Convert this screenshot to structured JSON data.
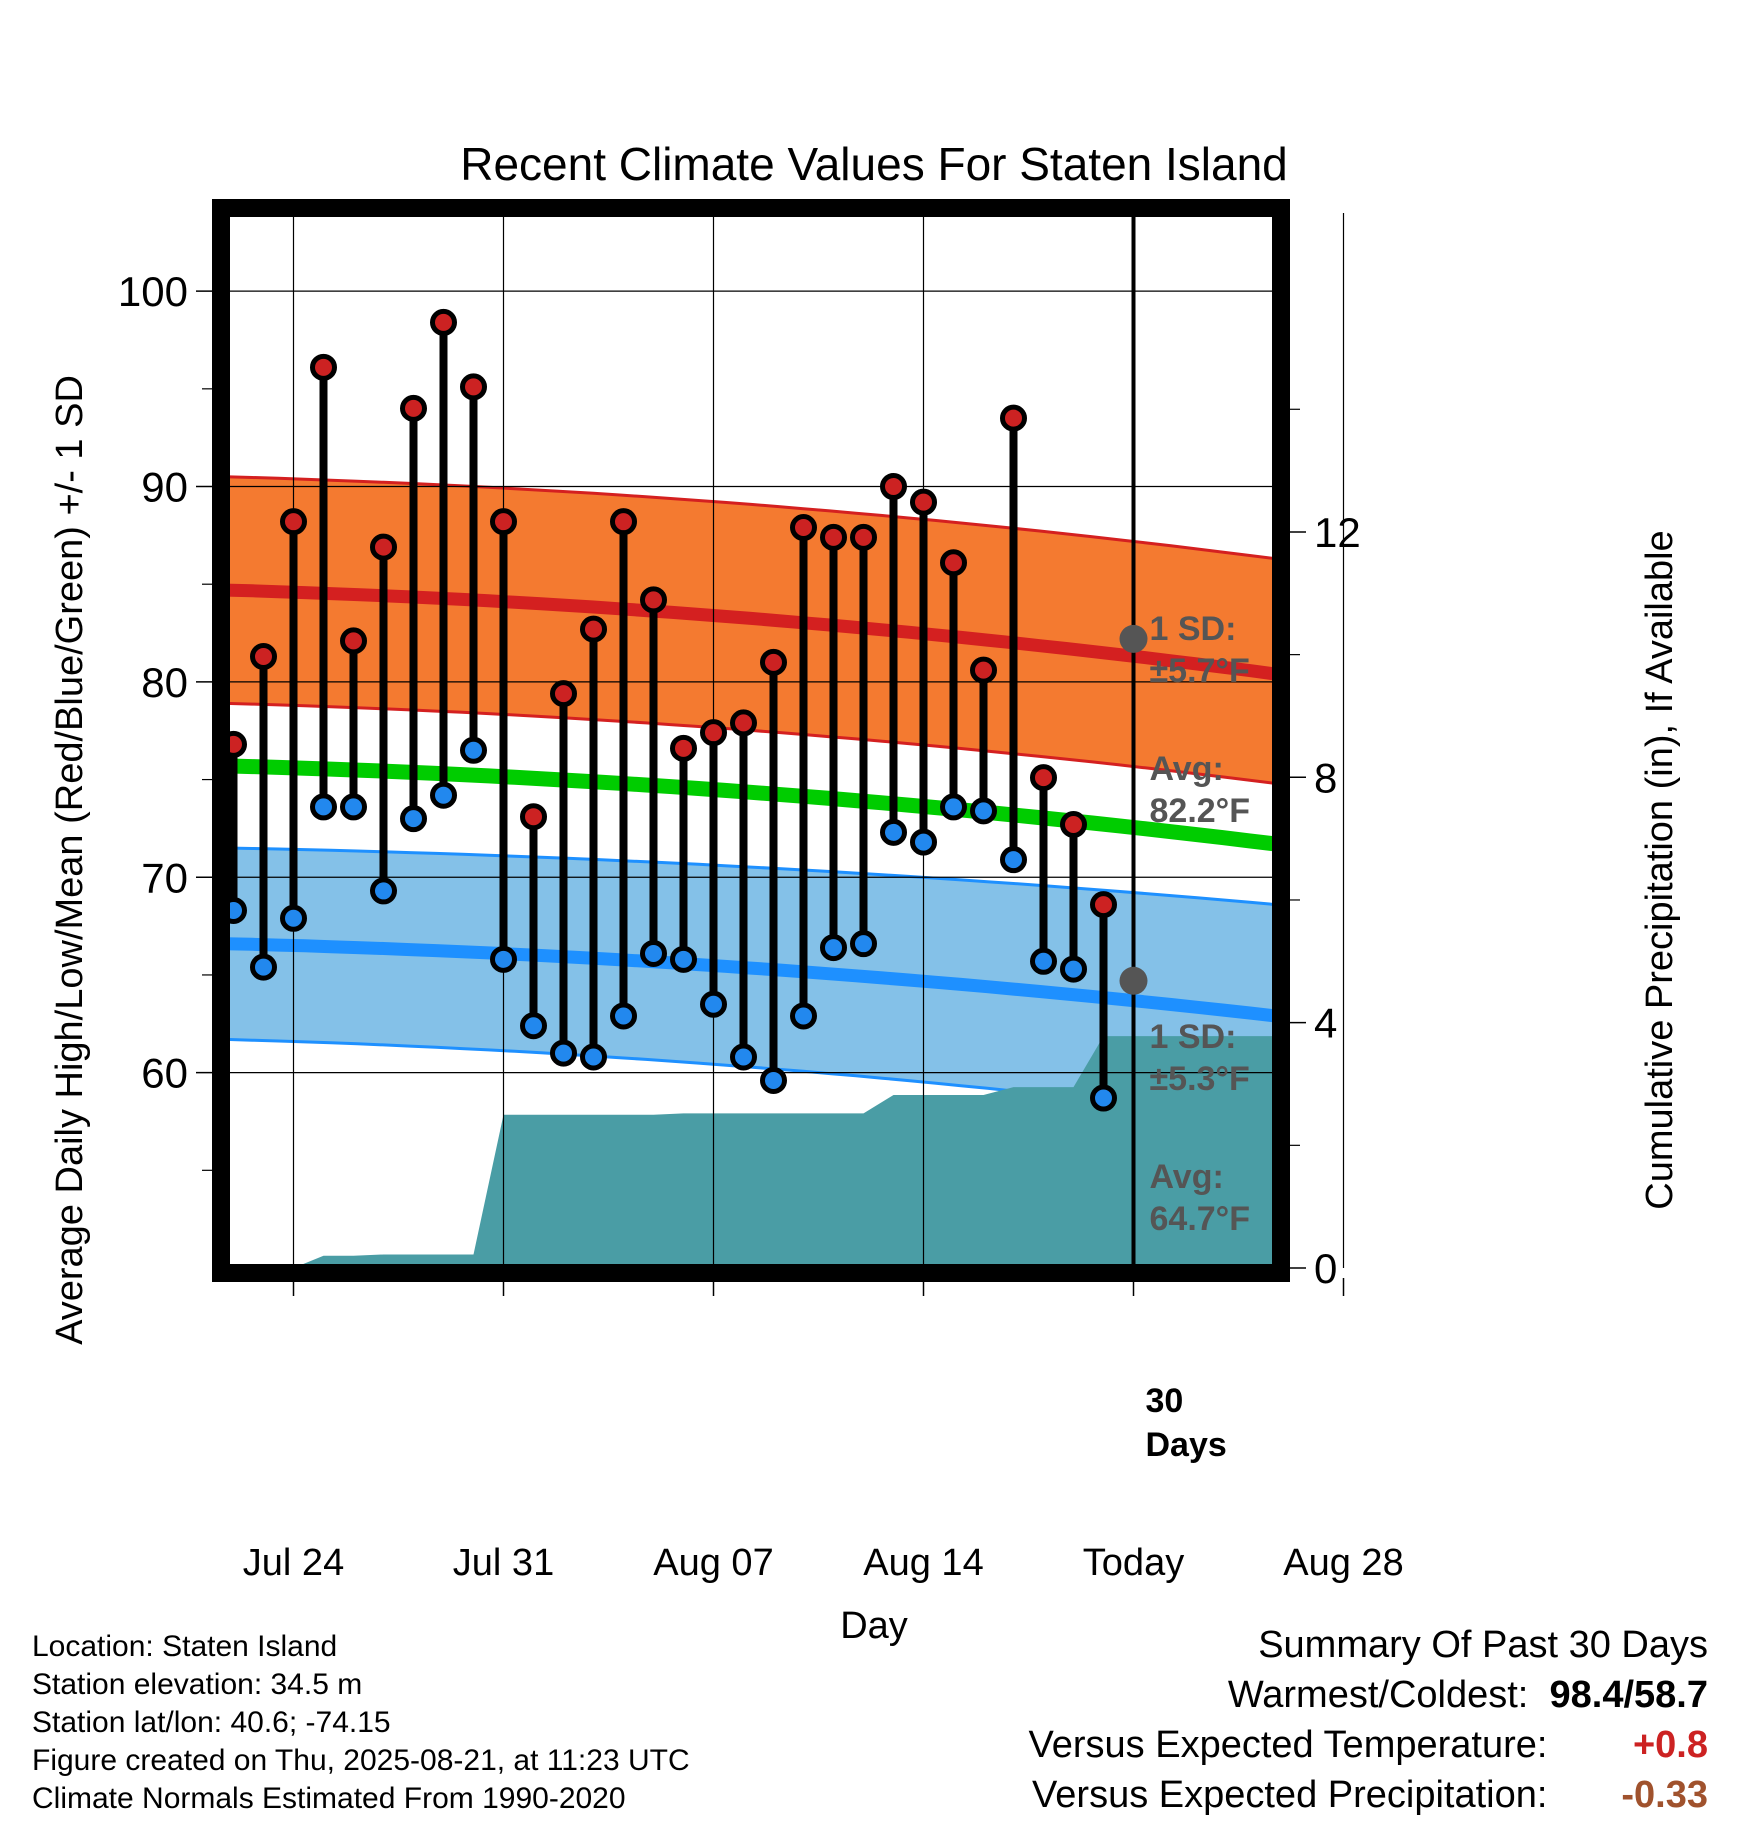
{
  "chart_data": {
    "type": "line",
    "title": "Recent Climate Values For Staten Island",
    "xlabel": "Day",
    "ylabel": "Average Daily High/Low/Mean (Red/Blue/Green) +/- 1 SD",
    "y2label": "Cumulative Precipitation (in), If Available",
    "ylim": [
      50,
      104
    ],
    "y_ticks": [
      "100",
      "90",
      "80",
      "70",
      "60"
    ],
    "y2lim": [
      0,
      17.2
    ],
    "y2_ticks": [
      "12",
      "8",
      "4",
      "0"
    ],
    "x_ticks": [
      "Jul 24",
      "Jul 31",
      "Aug 07",
      "Aug 14",
      "Today",
      "Aug 28"
    ],
    "grid": true,
    "days": [
      "Jul 22",
      "Jul 23",
      "Jul 24",
      "Jul 25",
      "Jul 26",
      "Jul 27",
      "Jul 28",
      "Jul 29",
      "Jul 30",
      "Jul 31",
      "Aug 01",
      "Aug 02",
      "Aug 03",
      "Aug 04",
      "Aug 05",
      "Aug 06",
      "Aug 07",
      "Aug 08",
      "Aug 09",
      "Aug 10",
      "Aug 11",
      "Aug 12",
      "Aug 13",
      "Aug 14",
      "Aug 15",
      "Aug 16",
      "Aug 17",
      "Aug 18",
      "Aug 19",
      "Aug 20"
    ],
    "series": [
      {
        "name": "High",
        "color": "#cc2222",
        "values": [
          76.8,
          81.3,
          88.2,
          96.1,
          82.1,
          86.9,
          94.0,
          98.4,
          95.1,
          88.2,
          73.1,
          79.4,
          82.7,
          88.2,
          84.2,
          76.6,
          77.4,
          77.9,
          81.0,
          87.9,
          87.4,
          87.4,
          90.0,
          89.2,
          86.1,
          80.6,
          93.5,
          75.1,
          72.7,
          68.6
        ]
      },
      {
        "name": "Low",
        "color": "#2288ee",
        "values": [
          68.3,
          65.4,
          67.9,
          73.6,
          73.6,
          69.3,
          73.0,
          74.2,
          76.5,
          65.8,
          62.4,
          61.0,
          60.8,
          62.9,
          66.1,
          65.8,
          63.5,
          60.8,
          59.6,
          62.9,
          66.4,
          66.6,
          72.3,
          71.8,
          73.6,
          73.4,
          70.9,
          65.7,
          65.3,
          58.7
        ]
      }
    ],
    "normals": {
      "days": [
        "Jul 21",
        "Aug 31"
      ],
      "high_avg": [
        84.7,
        80.4
      ],
      "high_sd_upper": [
        90.5,
        86.3
      ],
      "high_sd_lower": [
        78.9,
        74.8
      ],
      "low_avg": [
        66.6,
        62.9
      ],
      "low_sd_upper": [
        71.5,
        68.6
      ],
      "low_sd_lower": [
        61.7,
        57.5
      ],
      "mean_avg": [
        75.7,
        71.7
      ]
    },
    "precip_cumulative": {
      "days": [
        "Jul 21",
        "Jul 22",
        "Jul 23",
        "Jul 24",
        "Jul 25",
        "Jul 26",
        "Jul 27",
        "Jul 28",
        "Jul 29",
        "Jul 30",
        "Jul 31",
        "Aug 01",
        "Aug 02",
        "Aug 03",
        "Aug 04",
        "Aug 05",
        "Aug 06",
        "Aug 07",
        "Aug 08",
        "Aug 09",
        "Aug 10",
        "Aug 11",
        "Aug 12",
        "Aug 13",
        "Aug 14",
        "Aug 15",
        "Aug 16",
        "Aug 17",
        "Aug 18",
        "Aug 19",
        "Aug 20",
        "Aug 31"
      ],
      "values": [
        0,
        0,
        0,
        0,
        0.2,
        0.2,
        0.22,
        0.22,
        0.22,
        0.22,
        2.5,
        2.5,
        2.5,
        2.5,
        2.5,
        2.5,
        2.52,
        2.52,
        2.52,
        2.52,
        2.52,
        2.52,
        2.52,
        2.82,
        2.82,
        2.82,
        2.82,
        2.95,
        2.95,
        2.95,
        3.78,
        3.78
      ]
    },
    "annotations": {
      "high_sd_label": "1 SD:",
      "high_sd_value": "±5.7°F",
      "high_avg_label": "Avg:",
      "high_avg_value": "82.2°F",
      "low_sd_label": "1 SD:",
      "low_sd_value": "±5.3°F",
      "low_avg_label": "Avg:",
      "low_avg_value": "64.7°F",
      "days_label_num": "30",
      "days_label_text": "Days"
    },
    "today": {
      "high_avg": 82.2,
      "low_avg": 64.7
    }
  },
  "info": {
    "location": "Location: Staten Island",
    "elevation": "Station elevation: 34.5 m",
    "latlon": "Station lat/lon: 40.6; -74.15",
    "created": "Figure created on Thu, 2025-08-21, at 11:23 UTC",
    "normals": "Climate Normals Estimated From 1990-2020"
  },
  "summary": {
    "title": "Summary Of Past 30 Days",
    "warmest_label": "Warmest/Coldest:",
    "warmest": "98.4",
    "sep": "/",
    "coldest": "58.7",
    "temp_label": "Versus Expected Temperature:",
    "temp_value": "+0.8",
    "precip_label": "Versus Expected Precipitation:",
    "precip_value": "-0.33"
  },
  "colors": {
    "high_band": "#f47a30",
    "high_line": "#d42020",
    "low_band": "#84c1e8",
    "low_line": "#1e90ff",
    "mean_line": "#00cc00",
    "precip": "#4a9da5",
    "high_dot": "#cc2222",
    "low_dot": "#2288ee",
    "annot": "#555555",
    "temp_value": "#cc2222",
    "precip_value": "#a0522d"
  }
}
